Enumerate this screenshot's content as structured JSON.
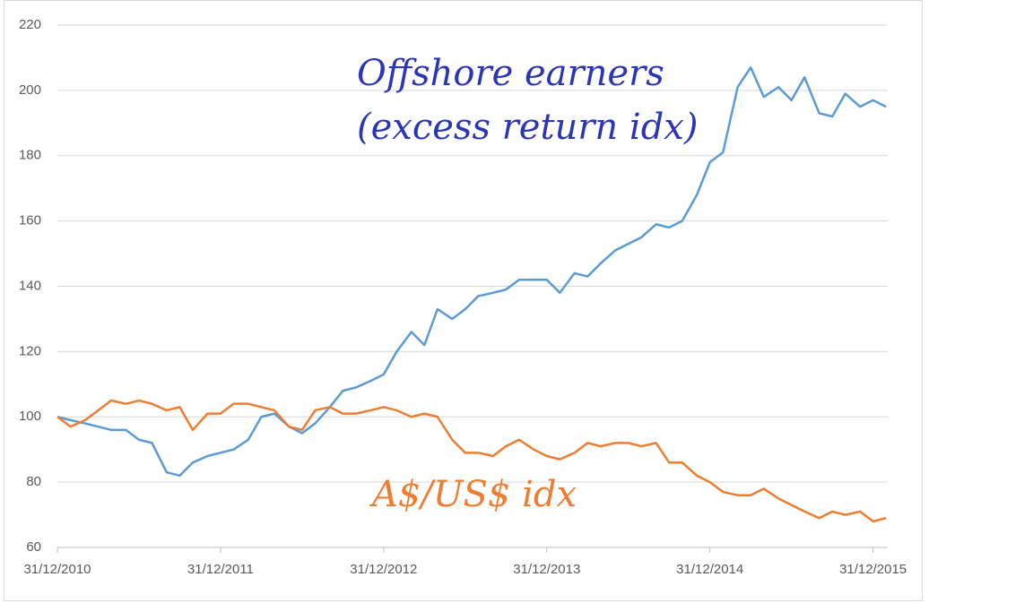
{
  "chart_data": {
    "type": "line",
    "x": [
      2011.0,
      2011.08,
      2011.17,
      2011.25,
      2011.33,
      2011.42,
      2011.5,
      2011.58,
      2011.67,
      2011.75,
      2011.83,
      2011.92,
      2012.0,
      2012.08,
      2012.17,
      2012.25,
      2012.33,
      2012.42,
      2012.5,
      2012.58,
      2012.67,
      2012.75,
      2012.83,
      2012.92,
      2013.0,
      2013.08,
      2013.17,
      2013.25,
      2013.33,
      2013.42,
      2013.5,
      2013.58,
      2013.67,
      2013.75,
      2013.83,
      2013.92,
      2014.0,
      2014.08,
      2014.17,
      2014.25,
      2014.33,
      2014.42,
      2014.5,
      2014.58,
      2014.67,
      2014.75,
      2014.83,
      2014.92,
      2015.0,
      2015.08,
      2015.17,
      2015.25,
      2015.33,
      2015.42,
      2015.5,
      2015.58,
      2015.67,
      2015.75,
      2015.83,
      2015.92,
      2016.0,
      2016.08
    ],
    "series": [
      {
        "name": "Offshore earners (excess return idx)",
        "color": "#5b9bd5",
        "values": [
          100,
          99,
          98,
          97,
          96,
          96,
          93,
          92,
          83,
          82,
          86,
          88,
          89,
          90,
          93,
          100,
          101,
          97,
          95,
          98,
          103,
          108,
          109,
          111,
          113,
          120,
          126,
          122,
          133,
          130,
          133,
          137,
          138,
          139,
          142,
          142,
          142,
          138,
          144,
          143,
          147,
          151,
          153,
          155,
          159,
          158,
          160,
          168,
          178,
          181,
          201,
          207,
          198,
          201,
          197,
          204,
          193,
          192,
          199,
          195,
          197,
          195
        ]
      },
      {
        "name": "A$/US$ idx",
        "color": "#ed7d31",
        "values": [
          100,
          97,
          99,
          102,
          105,
          104,
          105,
          104,
          102,
          103,
          96,
          101,
          101,
          104,
          104,
          103,
          102,
          97,
          96,
          102,
          103,
          101,
          101,
          102,
          103,
          102,
          100,
          101,
          100,
          93,
          89,
          89,
          88,
          91,
          93,
          90,
          88,
          87,
          89,
          92,
          91,
          92,
          92,
          91,
          92,
          86,
          86,
          82,
          80,
          77,
          76,
          76,
          78,
          75,
          73,
          71,
          69,
          71,
          70,
          71,
          68,
          69
        ]
      }
    ],
    "annotations": [
      {
        "text": "Offshore earners",
        "series": 0
      },
      {
        "text": "(excess return idx)",
        "series": 0
      },
      {
        "text": "A$/US$ idx",
        "series": 1
      }
    ],
    "xlim": [
      2011,
      2016.09
    ],
    "xticks": [
      {
        "value": 2011,
        "label": "31/12/2010"
      },
      {
        "value": 2012,
        "label": "31/12/2011"
      },
      {
        "value": 2013,
        "label": "31/12/2012"
      },
      {
        "value": 2014,
        "label": "31/12/2013"
      },
      {
        "value": 2015,
        "label": "31/12/2014"
      },
      {
        "value": 2016,
        "label": "31/12/2015"
      }
    ],
    "ylim": [
      60,
      220
    ],
    "yticks": [
      60,
      80,
      100,
      120,
      140,
      160,
      180,
      200,
      220
    ],
    "grid": true
  }
}
